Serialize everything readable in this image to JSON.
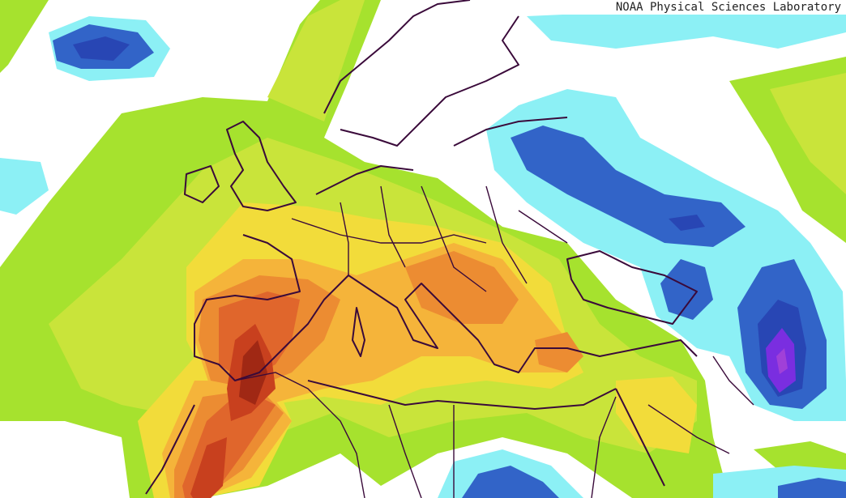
{
  "credit": "NOAA Physical Sciences Laboratory"
}
